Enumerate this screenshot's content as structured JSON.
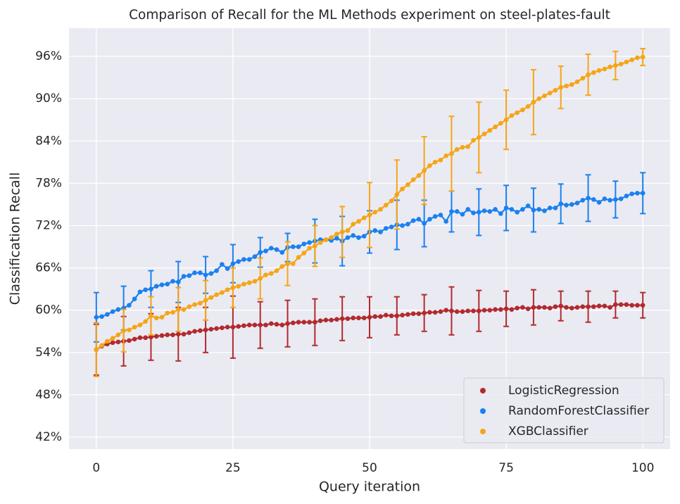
{
  "chart_data": {
    "type": "line",
    "title": "Comparison of Recall for the ML Methods experiment on steel-plates-fault",
    "xlabel": "Query iteration",
    "ylabel": "Classification Recall",
    "xlim": [
      -5,
      105
    ],
    "ylim": [
      40.3,
      100
    ],
    "xticks": [
      0,
      25,
      50,
      75,
      100
    ],
    "yticks": [
      {
        "value": 42,
        "label": "42%"
      },
      {
        "value": 48,
        "label": "48%"
      },
      {
        "value": 54,
        "label": "54%"
      },
      {
        "value": 60,
        "label": "60%"
      },
      {
        "value": 66,
        "label": "66%"
      },
      {
        "value": 72,
        "label": "72%"
      },
      {
        "value": 78,
        "label": "78%"
      },
      {
        "value": 84,
        "label": "84%"
      },
      {
        "value": 90,
        "label": "90%"
      },
      {
        "value": 96,
        "label": "96%"
      }
    ],
    "grid": true,
    "legend": "lower right",
    "x": [
      0,
      1,
      2,
      3,
      4,
      5,
      6,
      7,
      8,
      9,
      10,
      11,
      12,
      13,
      14,
      15,
      16,
      17,
      18,
      19,
      20,
      21,
      22,
      23,
      24,
      25,
      26,
      27,
      28,
      29,
      30,
      31,
      32,
      33,
      34,
      35,
      36,
      37,
      38,
      39,
      40,
      41,
      42,
      43,
      44,
      45,
      46,
      47,
      48,
      49,
      50,
      51,
      52,
      53,
      54,
      55,
      56,
      57,
      58,
      59,
      60,
      61,
      62,
      63,
      64,
      65,
      66,
      67,
      68,
      69,
      70,
      71,
      72,
      73,
      74,
      75,
      76,
      77,
      78,
      79,
      80,
      81,
      82,
      83,
      84,
      85,
      86,
      87,
      88,
      89,
      90,
      91,
      92,
      93,
      94,
      95,
      96,
      97,
      98,
      99,
      100
    ],
    "series": [
      {
        "name": "LogisticRegression",
        "color": "#b22a2e",
        "values": [
          54.4,
          54.9,
          55.2,
          55.4,
          55.5,
          55.6,
          55.7,
          55.9,
          56.1,
          56.1,
          56.2,
          56.3,
          56.4,
          56.5,
          56.5,
          56.6,
          56.6,
          56.8,
          57.0,
          57.1,
          57.2,
          57.3,
          57.4,
          57.5,
          57.6,
          57.6,
          57.7,
          57.8,
          57.9,
          57.9,
          57.9,
          57.9,
          58.1,
          58.0,
          57.9,
          58.1,
          58.2,
          58.3,
          58.3,
          58.3,
          58.3,
          58.5,
          58.6,
          58.6,
          58.7,
          58.8,
          58.8,
          58.9,
          58.9,
          58.9,
          59.0,
          59.1,
          59.1,
          59.3,
          59.2,
          59.2,
          59.3,
          59.4,
          59.5,
          59.5,
          59.6,
          59.7,
          59.7,
          59.8,
          60.0,
          59.9,
          59.8,
          59.8,
          59.9,
          59.9,
          59.9,
          60.0,
          60.0,
          60.1,
          60.1,
          60.2,
          60.1,
          60.3,
          60.4,
          60.2,
          60.4,
          60.4,
          60.4,
          60.3,
          60.5,
          60.6,
          60.4,
          60.3,
          60.4,
          60.5,
          60.5,
          60.5,
          60.6,
          60.6,
          60.4,
          60.8,
          60.8,
          60.8,
          60.7,
          60.7,
          60.7
        ],
        "errors": [
          3.6,
          null,
          null,
          null,
          null,
          3.5,
          null,
          null,
          null,
          null,
          3.3,
          null,
          null,
          null,
          null,
          3.8,
          null,
          null,
          null,
          null,
          3.2,
          null,
          null,
          null,
          null,
          4.4,
          null,
          null,
          null,
          null,
          3.3,
          null,
          null,
          null,
          null,
          3.3,
          null,
          null,
          null,
          null,
          3.3,
          null,
          null,
          null,
          null,
          3.1,
          null,
          null,
          null,
          null,
          2.9,
          null,
          null,
          null,
          null,
          2.7,
          null,
          null,
          null,
          null,
          2.6,
          null,
          null,
          null,
          null,
          3.4,
          null,
          null,
          null,
          null,
          2.9,
          null,
          null,
          null,
          null,
          2.5,
          null,
          null,
          null,
          null,
          2.5,
          null,
          null,
          null,
          null,
          2.1,
          null,
          null,
          null,
          null,
          2.2,
          null,
          null,
          null,
          null,
          1.9,
          null,
          null,
          null,
          null,
          1.8
        ]
      },
      {
        "name": "RandomForestClassifier",
        "color": "#1a80f0",
        "values": [
          59.0,
          59.1,
          59.4,
          59.8,
          60.1,
          60.3,
          60.7,
          61.6,
          62.6,
          62.9,
          63.0,
          63.4,
          63.6,
          63.7,
          64.1,
          64.0,
          64.8,
          64.9,
          65.3,
          65.3,
          65.0,
          65.2,
          65.6,
          66.5,
          65.9,
          66.6,
          66.9,
          67.2,
          67.2,
          67.6,
          68.2,
          68.4,
          68.8,
          68.6,
          68.2,
          68.9,
          69.0,
          69.0,
          69.4,
          69.6,
          69.8,
          70.0,
          70.0,
          69.9,
          70.2,
          69.8,
          70.3,
          70.6,
          70.3,
          70.5,
          71.1,
          71.3,
          71.1,
          71.6,
          71.8,
          72.1,
          72.0,
          72.2,
          72.7,
          72.9,
          72.3,
          72.9,
          73.3,
          73.5,
          72.6,
          74.0,
          74.0,
          73.6,
          74.3,
          73.8,
          73.9,
          74.1,
          74.0,
          74.3,
          73.7,
          74.5,
          74.3,
          73.9,
          74.3,
          74.8,
          74.2,
          74.3,
          74.1,
          74.5,
          74.5,
          75.1,
          74.9,
          75.0,
          75.2,
          75.6,
          75.9,
          75.7,
          75.3,
          75.8,
          75.6,
          75.7,
          75.8,
          76.2,
          76.5,
          76.6,
          76.6
        ],
        "errors": [
          3.5,
          null,
          null,
          null,
          null,
          3.1,
          null,
          null,
          null,
          null,
          2.6,
          null,
          null,
          null,
          null,
          2.9,
          null,
          null,
          null,
          null,
          2.6,
          null,
          null,
          null,
          null,
          2.7,
          null,
          null,
          null,
          null,
          2.1,
          null,
          null,
          null,
          null,
          2.0,
          null,
          null,
          null,
          null,
          3.1,
          null,
          null,
          null,
          null,
          3.5,
          null,
          null,
          null,
          null,
          3.0,
          null,
          null,
          null,
          null,
          3.5,
          null,
          null,
          null,
          null,
          3.3,
          null,
          null,
          null,
          null,
          2.9,
          null,
          null,
          null,
          null,
          3.3,
          null,
          null,
          null,
          null,
          3.2,
          null,
          null,
          null,
          null,
          3.1,
          null,
          null,
          null,
          null,
          2.8,
          null,
          null,
          null,
          null,
          3.3,
          null,
          null,
          null,
          null,
          2.6,
          null,
          null,
          null,
          null,
          2.9
        ]
      },
      {
        "name": "XGBClassifier",
        "color": "#f5a516",
        "values": [
          54.4,
          55.0,
          55.6,
          56.0,
          56.5,
          57.1,
          57.2,
          57.6,
          57.9,
          58.4,
          59.2,
          58.9,
          59.0,
          59.6,
          59.7,
          60.1,
          60.1,
          60.5,
          60.8,
          61.0,
          61.4,
          61.8,
          62.2,
          62.5,
          62.9,
          63.2,
          63.4,
          63.7,
          63.9,
          64.1,
          64.5,
          65.0,
          65.2,
          65.6,
          66.2,
          66.6,
          66.6,
          67.5,
          68.1,
          68.8,
          69.1,
          69.6,
          70.0,
          70.3,
          70.8,
          71.1,
          71.3,
          72.2,
          72.6,
          73.1,
          73.5,
          73.9,
          74.3,
          74.9,
          75.5,
          76.4,
          77.2,
          77.8,
          78.5,
          79.1,
          79.8,
          80.5,
          81.0,
          81.3,
          81.9,
          82.2,
          82.8,
          83.1,
          83.2,
          84.1,
          84.5,
          85.0,
          85.5,
          86.0,
          86.5,
          87.0,
          87.6,
          88.0,
          88.4,
          88.9,
          89.5,
          90.0,
          90.4,
          90.8,
          91.2,
          91.6,
          91.8,
          92.0,
          92.4,
          92.9,
          93.4,
          93.7,
          94.0,
          94.2,
          94.5,
          94.7,
          94.9,
          95.2,
          95.5,
          95.8,
          95.9
        ],
        "errors": [
          3.8,
          null,
          null,
          null,
          null,
          3.0,
          null,
          null,
          null,
          null,
          2.7,
          null,
          null,
          null,
          null,
          3.1,
          null,
          null,
          null,
          null,
          2.8,
          null,
          null,
          null,
          null,
          2.8,
          null,
          null,
          null,
          null,
          2.9,
          null,
          null,
          null,
          null,
          3.1,
          null,
          null,
          null,
          null,
          2.9,
          null,
          null,
          null,
          null,
          3.6,
          null,
          null,
          null,
          null,
          4.6,
          null,
          null,
          null,
          null,
          4.9,
          null,
          null,
          null,
          null,
          4.8,
          null,
          null,
          null,
          null,
          5.3,
          null,
          null,
          null,
          null,
          5.0,
          null,
          null,
          null,
          null,
          4.2,
          null,
          null,
          null,
          null,
          4.6,
          null,
          null,
          null,
          null,
          3.0,
          null,
          null,
          null,
          null,
          2.9,
          null,
          null,
          null,
          null,
          2.0,
          null,
          null,
          null,
          null,
          1.2
        ]
      }
    ]
  }
}
